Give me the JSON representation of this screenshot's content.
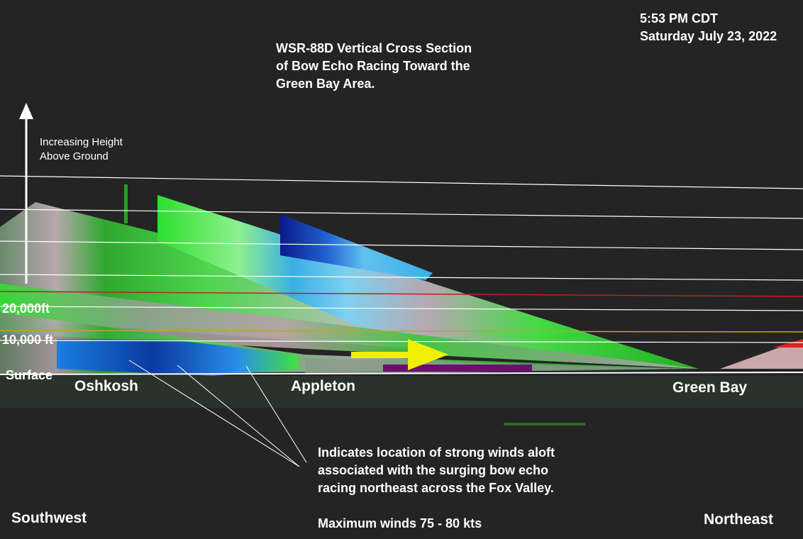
{
  "timestamp": {
    "time": "5:53 PM CDT",
    "date": "Saturday July 23, 2022"
  },
  "title": {
    "lines": [
      "WSR-88D Vertical Cross Section",
      "of Bow Echo Racing Toward the",
      "Green Bay Area."
    ]
  },
  "height_arrow": {
    "lines": [
      "Increasing Height",
      "Above Ground"
    ]
  },
  "height_labels": [
    "20,000ft",
    "10,000 ft",
    "Surface"
  ],
  "places": [
    "Oshkosh",
    "Appleton",
    "Green Bay"
  ],
  "annotation": {
    "lines": [
      "Indicates location of strong winds aloft",
      "associated with the surging bow echo",
      "racing northeast across the Fox Valley."
    ]
  },
  "max_winds": "Maximum winds 75 - 80 kts",
  "directions": {
    "left": "Southwest",
    "right": "Northeast"
  }
}
